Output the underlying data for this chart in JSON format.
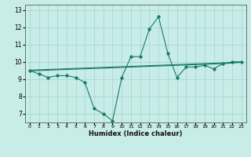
{
  "title": "",
  "xlabel": "Humidex (Indice chaleur)",
  "ylabel": "",
  "bg_color": "#c8ece8",
  "grid_color": "#a0d4ce",
  "line_color": "#1a7a6a",
  "x": [
    0,
    1,
    2,
    3,
    4,
    5,
    6,
    7,
    8,
    9,
    10,
    11,
    12,
    13,
    14,
    15,
    16,
    17,
    18,
    19,
    20,
    21,
    22,
    23
  ],
  "y_main": [
    9.5,
    9.3,
    9.1,
    9.2,
    9.2,
    9.1,
    8.8,
    7.3,
    7.0,
    6.6,
    9.1,
    10.3,
    10.3,
    11.9,
    12.6,
    10.5,
    9.1,
    9.7,
    9.7,
    9.8,
    9.6,
    9.9,
    10.0,
    10.0
  ],
  "y_flat1": [
    9.52,
    9.54,
    9.56,
    9.58,
    9.6,
    9.62,
    9.64,
    9.66,
    9.68,
    9.7,
    9.72,
    9.74,
    9.76,
    9.78,
    9.8,
    9.82,
    9.84,
    9.86,
    9.88,
    9.9,
    9.92,
    9.94,
    9.97,
    10.0
  ],
  "y_flat2": [
    9.48,
    9.5,
    9.52,
    9.54,
    9.56,
    9.58,
    9.6,
    9.62,
    9.64,
    9.66,
    9.68,
    9.7,
    9.72,
    9.74,
    9.76,
    9.78,
    9.8,
    9.82,
    9.84,
    9.86,
    9.88,
    9.9,
    9.93,
    9.97
  ],
  "ylim": [
    6.5,
    13.3
  ],
  "yticks": [
    7,
    8,
    9,
    10,
    11,
    12,
    13
  ],
  "xticks": [
    0,
    1,
    2,
    3,
    4,
    5,
    6,
    7,
    8,
    9,
    10,
    11,
    12,
    13,
    14,
    15,
    16,
    17,
    18,
    19,
    20,
    21,
    22,
    23
  ],
  "xlim": [
    -0.5,
    23.5
  ]
}
